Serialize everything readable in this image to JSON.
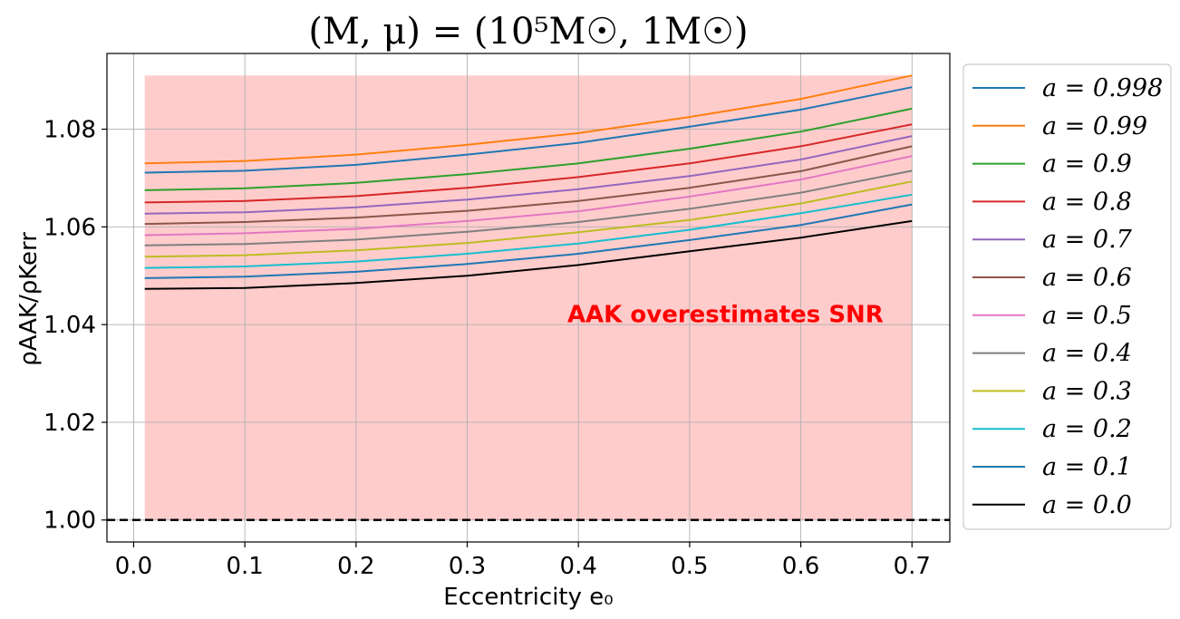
{
  "chart_data": {
    "type": "line",
    "title": "(M, μ) = (10⁵M☉, 1M☉)",
    "xlabel": "Eccentricity e₀",
    "ylabel": "ρAAK/ρKerr",
    "xlim": [
      -0.024,
      0.734
    ],
    "ylim": [
      0.9955,
      1.0955
    ],
    "xticks": [
      0.0,
      0.1,
      0.2,
      0.3,
      0.4,
      0.5,
      0.6,
      0.7
    ],
    "xtick_labels": [
      "0.0",
      "0.1",
      "0.2",
      "0.3",
      "0.4",
      "0.5",
      "0.6",
      "0.7"
    ],
    "yticks": [
      1.0,
      1.02,
      1.04,
      1.06,
      1.08
    ],
    "ytick_labels": [
      "1.00",
      "1.02",
      "1.04",
      "1.06",
      "1.08"
    ],
    "grid": true,
    "legend_position": "outside-right",
    "shaded_region": {
      "x": [
        0.01,
        0.7
      ],
      "y": [
        1.0,
        1.091
      ],
      "color": "#ffcccc"
    },
    "reference_line": {
      "y": 1.0,
      "style": "dashed",
      "color": "#000000"
    },
    "annotation": {
      "text": "AAK overestimates SNR",
      "x": 0.39,
      "y": 1.0405,
      "color": "#ff0000"
    },
    "x": [
      0.01,
      0.1,
      0.2,
      0.3,
      0.4,
      0.5,
      0.6,
      0.7
    ],
    "series": [
      {
        "name": "a = 0.998",
        "color": "#1f77b4",
        "values": [
          1.0711,
          1.0715,
          1.0727,
          1.0748,
          1.0772,
          1.0805,
          1.084,
          1.0886
        ]
      },
      {
        "name": "a = 0.99",
        "color": "#ff7f0e",
        "values": [
          1.073,
          1.0735,
          1.0748,
          1.0768,
          1.0792,
          1.0825,
          1.0862,
          1.091
        ]
      },
      {
        "name": "a = 0.9",
        "color": "#2ca02c",
        "values": [
          1.0675,
          1.0679,
          1.069,
          1.0708,
          1.073,
          1.076,
          1.0795,
          1.0842
        ]
      },
      {
        "name": "a = 0.8",
        "color": "#d62728",
        "values": [
          1.065,
          1.0653,
          1.0663,
          1.068,
          1.0702,
          1.073,
          1.0765,
          1.081
        ]
      },
      {
        "name": "a = 0.7",
        "color": "#9467bd",
        "values": [
          1.0627,
          1.063,
          1.064,
          1.0656,
          1.0677,
          1.0704,
          1.0738,
          1.0786
        ]
      },
      {
        "name": "a = 0.6",
        "color": "#8c564b",
        "values": [
          1.0606,
          1.061,
          1.0619,
          1.0633,
          1.0653,
          1.068,
          1.0714,
          1.0765
        ]
      },
      {
        "name": "a = 0.5",
        "color": "#e377c2",
        "values": [
          1.0583,
          1.0587,
          1.0596,
          1.0612,
          1.0632,
          1.0662,
          1.0697,
          1.0745
        ]
      },
      {
        "name": "a = 0.4",
        "color": "#7f7f7f",
        "values": [
          1.0562,
          1.0565,
          1.0574,
          1.059,
          1.061,
          1.0637,
          1.067,
          1.0715
        ]
      },
      {
        "name": "a = 0.3",
        "color": "#bcbd22",
        "values": [
          1.0539,
          1.0542,
          1.0552,
          1.0567,
          1.0589,
          1.0614,
          1.0648,
          1.0693
        ]
      },
      {
        "name": "a = 0.2",
        "color": "#17becf",
        "values": [
          1.0516,
          1.0519,
          1.0529,
          1.0545,
          1.0566,
          1.0594,
          1.0628,
          1.0666
        ]
      },
      {
        "name": "a = 0.1",
        "color": "#1f77b4",
        "values": [
          1.0495,
          1.0498,
          1.0508,
          1.0524,
          1.0545,
          1.0573,
          1.0604,
          1.0646
        ]
      },
      {
        "name": "a = 0.0",
        "color": "#000000",
        "values": [
          1.0473,
          1.0475,
          1.0485,
          1.05,
          1.0522,
          1.055,
          1.0578,
          1.0612
        ]
      }
    ]
  }
}
